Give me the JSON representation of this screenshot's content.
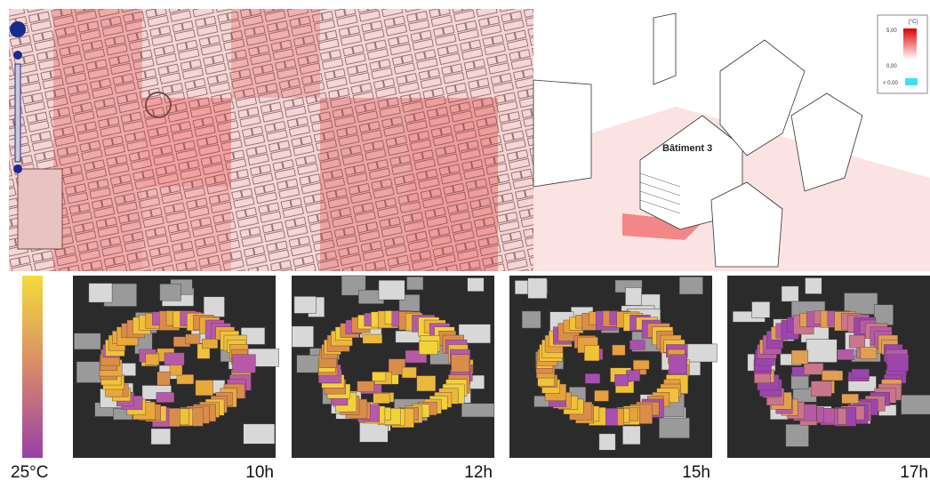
{
  "render3d": {
    "building_label": "Bâtiment 3",
    "legend": {
      "unit": "[°C]",
      "labels": [
        "5,00",
        "0,00",
        "< 0,00"
      ]
    }
  },
  "thermal": {
    "scale_label": "25°C",
    "panels": [
      {
        "time": "10h"
      },
      {
        "time": "12h"
      },
      {
        "time": "15h"
      },
      {
        "time": "17h"
      }
    ]
  }
}
